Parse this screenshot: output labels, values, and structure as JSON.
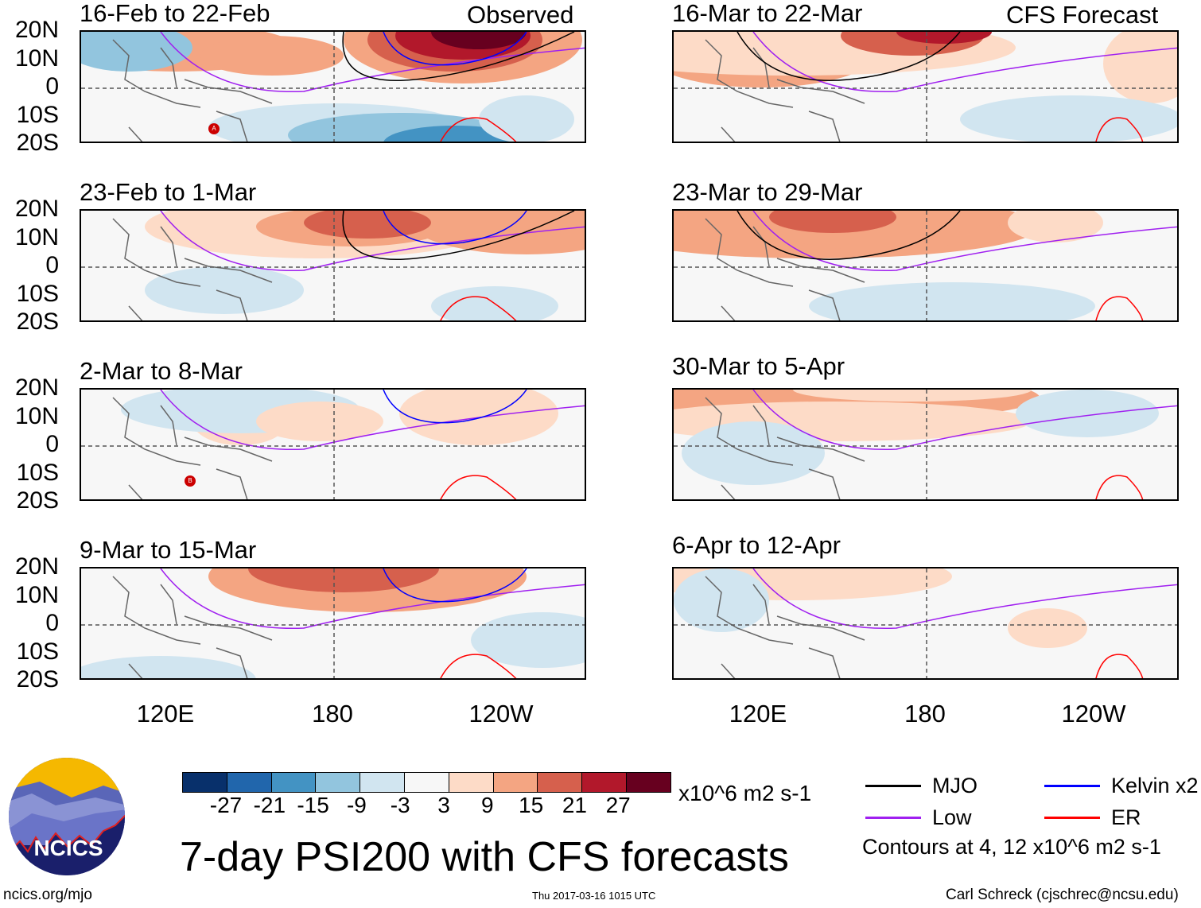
{
  "header": {
    "left_label": "Observed",
    "right_label": "CFS Forecast"
  },
  "observed_panels": [
    {
      "title": "16-Feb to 22-Feb"
    },
    {
      "title": "23-Feb to 1-Mar"
    },
    {
      "title": "2-Mar to 8-Mar"
    },
    {
      "title": "9-Mar to 15-Mar"
    }
  ],
  "forecast_panels": [
    {
      "title": "16-Mar to 22-Mar"
    },
    {
      "title": "23-Mar to 29-Mar"
    },
    {
      "title": "30-Mar to 5-Apr"
    },
    {
      "title": "6-Apr to 12-Apr"
    }
  ],
  "lat_labels": [
    "20N",
    "10N",
    "0",
    "10S",
    "20S"
  ],
  "lon_labels": [
    "120E",
    "180",
    "120W"
  ],
  "storm_markers": [
    "A",
    "B"
  ],
  "colorbar": {
    "colors": [
      "#08306b",
      "#2166ac",
      "#4393c3",
      "#92c5de",
      "#d1e5f0",
      "#f7f7f7",
      "#fddbc7",
      "#f4a582",
      "#d6604d",
      "#b2182b",
      "#67001f"
    ],
    "ticks": [
      "-27",
      "-21",
      "-15",
      "-9",
      "-3",
      "3",
      "9",
      "15",
      "21",
      "27"
    ],
    "units": "x10^6 m2 s-1"
  },
  "legend": {
    "items": [
      {
        "label": "MJO",
        "color": "#000000"
      },
      {
        "label": "Kelvin x2",
        "color": "#0000ff"
      },
      {
        "label": "Low",
        "color": "#a020f0"
      },
      {
        "label": "ER",
        "color": "#ff0000"
      }
    ],
    "contours_note": "Contours at 4, 12 x10^6 m2 s-1"
  },
  "title": "7-day PSI200 with CFS forecasts",
  "logo_text": "NCICS",
  "footer": {
    "url": "ncics.org/mjo",
    "timestamp": "Thu 2017-03-16 1015 UTC",
    "author": "Carl Schreck (cjschrec@ncsu.edu)"
  }
}
